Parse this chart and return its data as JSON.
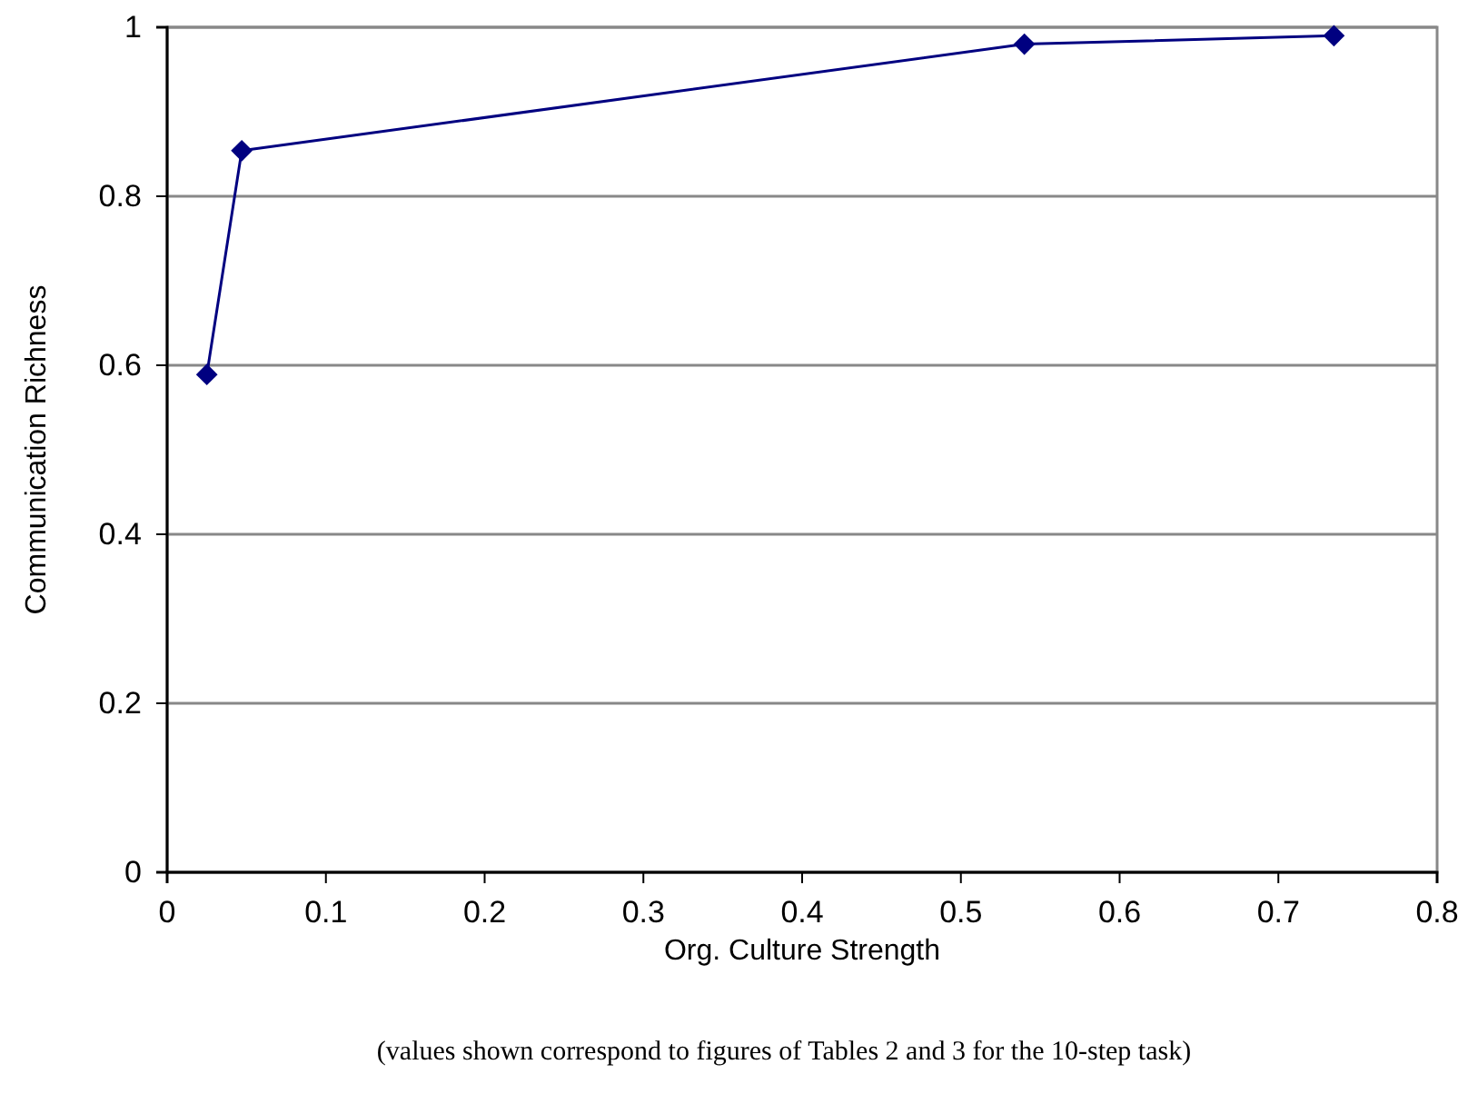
{
  "chart_data": {
    "type": "line",
    "xlabel": "Org. Culture Strength",
    "ylabel": "Communication Richness",
    "annotations": [
      "(values shown correspond to figures of Tables 2 and 3 for the 10-step task)"
    ],
    "x": [
      0.025,
      0.047,
      0.54,
      0.735
    ],
    "series": [
      {
        "color": "#000080",
        "values": [
          0.589,
          0.854,
          0.98,
          0.99
        ]
      }
    ],
    "xlim": [
      0,
      0.8
    ],
    "xticks": [
      0,
      0.1,
      0.2,
      0.3,
      0.4,
      0.5,
      0.6,
      0.7,
      0.8
    ],
    "ylim": [
      0,
      1
    ],
    "yticks": [
      0,
      0.2,
      0.4,
      0.6,
      0.8,
      1
    ],
    "grid": "y",
    "marker": "diamond",
    "line_style": "solid"
  }
}
